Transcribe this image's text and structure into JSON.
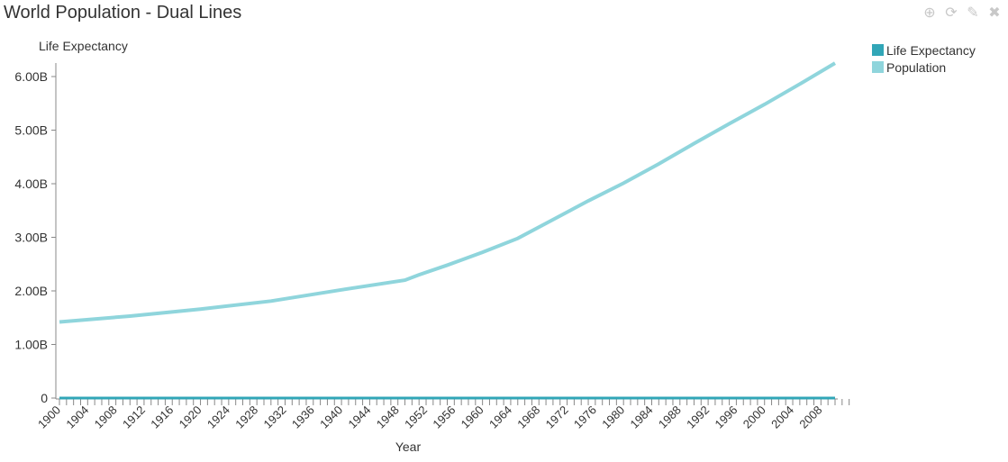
{
  "header": {
    "title": "World Population - Dual Lines"
  },
  "toolbar": [
    {
      "icon": "download-icon",
      "glyph": "⊕"
    },
    {
      "icon": "refresh-icon",
      "glyph": "⟳"
    },
    {
      "icon": "pencil-icon",
      "glyph": "✎"
    },
    {
      "icon": "close-icon",
      "glyph": "✖"
    }
  ],
  "chart_data": {
    "type": "line",
    "title": "World Population - Dual Lines",
    "xlabel": "Year",
    "ylabel": "Life Expectancy",
    "xlim": [
      1900,
      2010
    ],
    "ylim": [
      0,
      6000000000
    ],
    "x_ticks": [
      "1900",
      "1904",
      "1908",
      "1912",
      "1916",
      "1920",
      "1924",
      "1928",
      "1932",
      "1936",
      "1940",
      "1944",
      "1948",
      "1952",
      "1956",
      "1960",
      "1964",
      "1968",
      "1972",
      "1976",
      "1980",
      "1984",
      "1988",
      "1992",
      "1996",
      "2000",
      "2004",
      "2008"
    ],
    "y_ticks": [
      "0",
      "1.00B",
      "2.00B",
      "3.00B",
      "4.00B",
      "5.00B",
      "6.00B"
    ],
    "y_tick_values": [
      0,
      1000000000.0,
      2000000000.0,
      3000000000.0,
      4000000000.0,
      5000000000.0,
      6000000000.0
    ],
    "legend_position": "right",
    "series": [
      {
        "name": "Life Expectancy",
        "color": "#31a6b7",
        "x": [
          1900,
          2010
        ],
        "values": [
          47,
          70
        ]
      },
      {
        "name": "Population",
        "color": "#8fd5dc",
        "x": [
          1900,
          1910,
          1920,
          1930,
          1940,
          1949,
          1951,
          1955,
          1960,
          1965,
          1970,
          1975,
          1980,
          1985,
          1990,
          1995,
          2000,
          2005,
          2010
        ],
        "values": [
          1420000000.0,
          1530000000.0,
          1660000000.0,
          1810000000.0,
          2020000000.0,
          2200000000.0,
          2300000000.0,
          2480000000.0,
          2720000000.0,
          2980000000.0,
          3330000000.0,
          3680000000.0,
          4010000000.0,
          4370000000.0,
          4750000000.0,
          5120000000.0,
          5480000000.0,
          5860000000.0,
          6250000000.0
        ]
      }
    ]
  }
}
